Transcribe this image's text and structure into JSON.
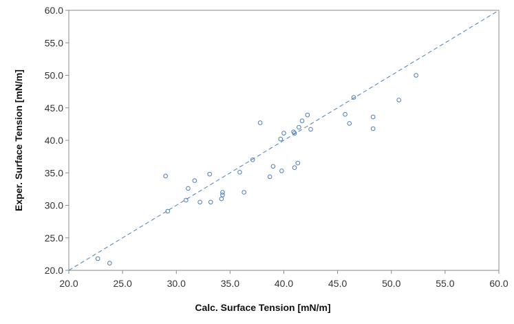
{
  "chart_data": {
    "type": "scatter",
    "title": "",
    "xlabel": "Calc. Surface Tension [mN/m]",
    "ylabel": "Exper. Surface Tension [mN/m]",
    "xlim": [
      20.0,
      60.0
    ],
    "ylim": [
      20.0,
      60.0
    ],
    "x_ticks": [
      "20.0",
      "25.0",
      "30.0",
      "35.0",
      "40.0",
      "45.0",
      "50.0",
      "55.0",
      "60.0"
    ],
    "y_ticks": [
      "20.0",
      "25.0",
      "30.0",
      "35.0",
      "40.0",
      "45.0",
      "50.0",
      "55.0",
      "60.0"
    ],
    "grid": false,
    "reference_line": {
      "style": "dashed",
      "from": [
        20.0,
        20.0
      ],
      "to": [
        60.0,
        60.0
      ]
    },
    "marker": "open-circle",
    "series": [
      {
        "x": [
          22.7,
          23.8,
          29.0,
          29.2,
          30.9,
          31.1,
          31.7,
          32.2,
          33.1,
          33.2,
          34.2,
          34.3,
          34.3,
          35.9,
          36.3,
          37.1,
          37.8,
          38.7,
          39.0,
          39.7,
          39.8,
          40.0,
          40.9,
          41.0,
          41.0,
          41.3,
          41.4,
          41.7,
          42.2,
          42.5,
          45.7,
          46.1,
          46.5,
          48.3,
          48.3,
          50.7,
          52.3
        ],
        "y": [
          21.8,
          21.1,
          34.5,
          29.1,
          30.8,
          32.6,
          33.8,
          30.5,
          34.8,
          30.5,
          31.0,
          32.0,
          31.6,
          35.1,
          32.0,
          37.0,
          42.7,
          34.4,
          36.0,
          40.2,
          35.3,
          41.1,
          41.3,
          41.1,
          35.8,
          36.5,
          42.0,
          43.0,
          43.9,
          41.7,
          44.0,
          42.6,
          46.6,
          43.6,
          41.8,
          46.2,
          50.0
        ]
      }
    ],
    "colors": {
      "marker": "#4a7ebb",
      "line": "#4a7ebb",
      "frame": "#898989",
      "tick_text": "#333333"
    }
  }
}
